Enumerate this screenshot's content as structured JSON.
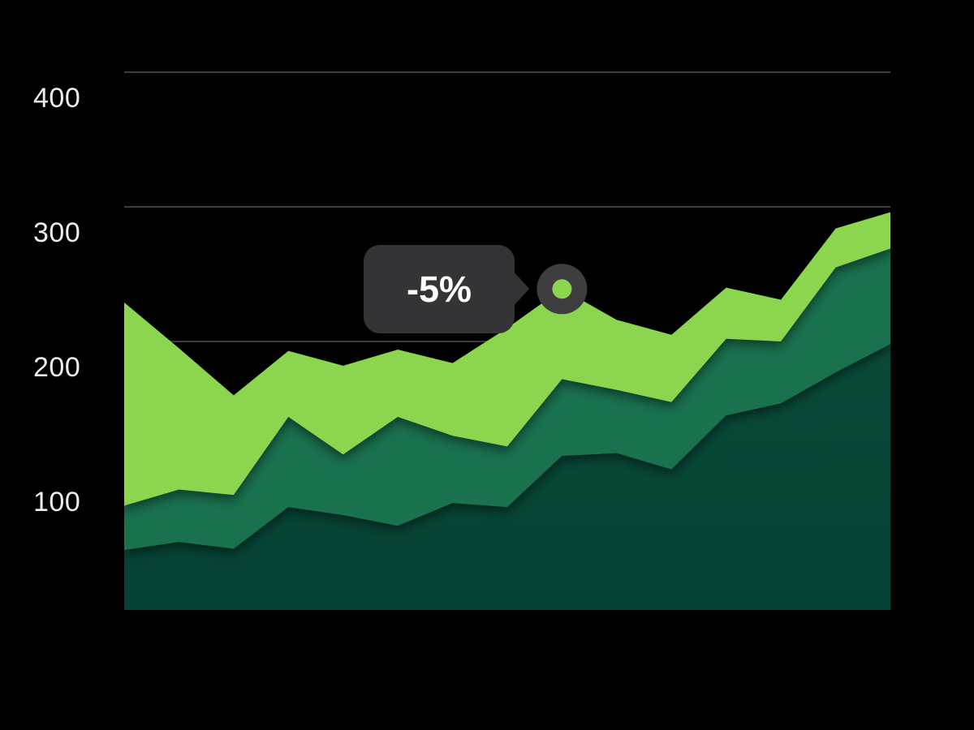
{
  "chart_data": {
    "type": "area",
    "stacked": true,
    "point_count": 15,
    "title": "",
    "xlabel": "",
    "ylabel": "",
    "x_axis": {
      "labels_visible": false
    },
    "y_axis": {
      "tick_labels": [
        "400",
        "300",
        "200",
        "100"
      ],
      "gridline_values": [
        400,
        300,
        200,
        100
      ],
      "ylim": [
        0,
        455
      ],
      "grid_on": true
    },
    "legend": {
      "visible": false
    },
    "series": [
      {
        "name": "dark-green",
        "color": "#0A4A39",
        "color_bottom": "#064234",
        "values": [
          45,
          51,
          46,
          77,
          71,
          63,
          80,
          77,
          115,
          117,
          105,
          145,
          154,
          177,
          198
        ]
      },
      {
        "name": "medium-green",
        "color": "#19714E",
        "values": [
          33,
          39,
          40,
          67,
          45,
          81,
          50,
          45,
          57,
          47,
          50,
          57,
          46,
          78,
          71
        ]
      },
      {
        "name": "light-green",
        "color": "#8BD64E",
        "values": [
          151,
          105,
          74,
          49,
          66,
          50,
          54,
          88,
          67,
          52,
          50,
          38,
          31,
          29,
          27
        ]
      }
    ],
    "annotation": {
      "tooltip_text": "-5%",
      "point_index": 8,
      "series": "light-green",
      "marker": "ring-dot"
    },
    "colors": {
      "background": "#000000",
      "gridline": "#3D3D3D",
      "axis_text": "#EDEDED",
      "tooltip_bg": "#343437",
      "tooltip_text": "#FFFFFF",
      "marker_ring": "#3E3E41",
      "marker_dot": "#8BD64E"
    }
  }
}
